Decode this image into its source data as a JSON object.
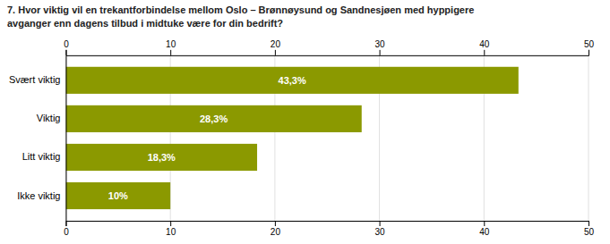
{
  "chart_data": {
    "type": "bar",
    "orientation": "horizontal",
    "title": "7. Hvor viktig vil en trekantforbindelse mellom Oslo – Brønnøysund og Sandnesjøen med hyppigere\navganger enn dagens tilbud i midtuke være for din bedrift?",
    "categories": [
      "Svært viktig",
      "Viktig",
      "Litt viktig",
      "Ikke viktig"
    ],
    "values": [
      43.3,
      28.3,
      18.3,
      10.0
    ],
    "value_labels": [
      "43,3%",
      "28,3%",
      "18,3%",
      "10%"
    ],
    "data_labels": true,
    "color": "#8B9900",
    "xlim": [
      0,
      50
    ],
    "xticks": [
      0,
      10,
      20,
      30,
      40,
      50
    ],
    "grid": true
  }
}
